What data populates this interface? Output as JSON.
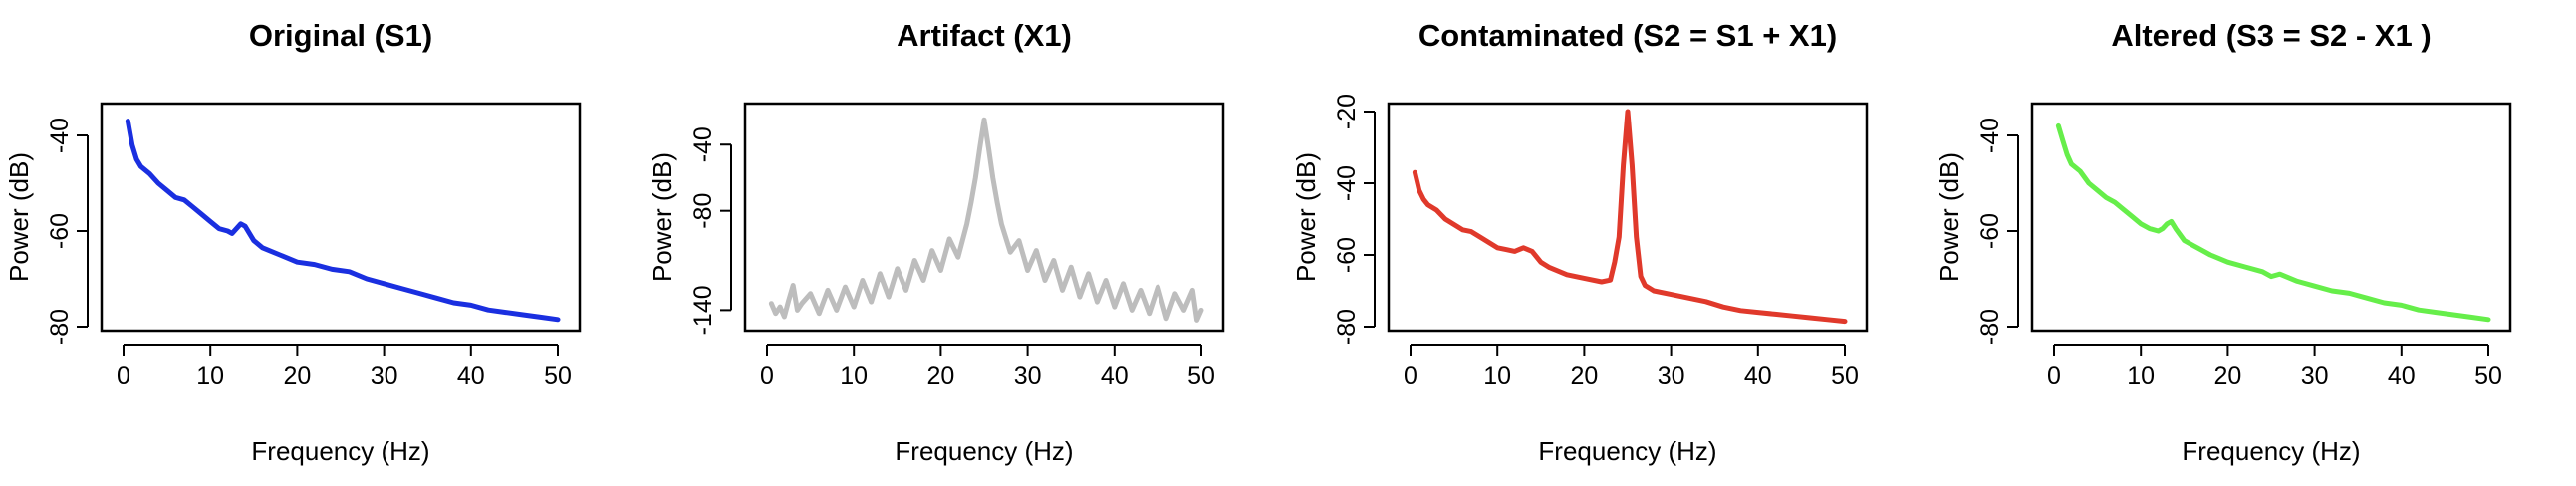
{
  "chart_data": [
    {
      "type": "line",
      "title": "Original (S1)",
      "xlabel": "Frequency (Hz)",
      "ylabel": "Power (dB)",
      "xlim": [
        0,
        50
      ],
      "ylim": [
        -80,
        -35
      ],
      "xticks": [
        0,
        10,
        20,
        30,
        40,
        50
      ],
      "yticks": [
        -80,
        -60,
        -40
      ],
      "color": "#1a2fe0",
      "series": [
        {
          "name": "S1",
          "x": [
            0.5,
            1,
            1.5,
            2,
            3,
            4,
            5,
            6,
            7,
            8,
            9,
            10,
            11,
            12,
            12.5,
            13,
            13.5,
            14,
            15,
            16,
            18,
            20,
            22,
            24,
            26,
            28,
            30,
            32,
            34,
            36,
            38,
            40,
            42,
            44,
            46,
            48,
            50
          ],
          "values": [
            -37,
            -42,
            -45,
            -46.5,
            -48,
            -50,
            -51.5,
            -53,
            -53.5,
            -55,
            -56.5,
            -58,
            -59.5,
            -60,
            -60.5,
            -59.5,
            -58.5,
            -59,
            -62,
            -63.5,
            -65,
            -66.5,
            -67,
            -68,
            -68.5,
            -70,
            -71,
            -72,
            -73,
            -74,
            -75,
            -75.5,
            -76.5,
            -77,
            -77.5,
            -78,
            -78.5
          ]
        }
      ]
    },
    {
      "type": "line",
      "title": "Artifact (X1)",
      "xlabel": "Frequency (Hz)",
      "ylabel": "Power (dB)",
      "xlim": [
        0,
        50
      ],
      "ylim": [
        -150,
        -20
      ],
      "xticks": [
        0,
        10,
        20,
        30,
        40,
        50
      ],
      "yticks": [
        -140,
        -80,
        -40
      ],
      "color": "#bdbdbd",
      "series": [
        {
          "name": "X1",
          "x": [
            0.5,
            1,
            1.5,
            2,
            2.5,
            3,
            3.5,
            4,
            5,
            6,
            7,
            8,
            9,
            10,
            11,
            12,
            13,
            14,
            15,
            16,
            17,
            18,
            19,
            20,
            21,
            22,
            23,
            23.5,
            24,
            24.5,
            25,
            25.5,
            26,
            26.5,
            27,
            28,
            29,
            30,
            31,
            32,
            33,
            34,
            35,
            36,
            37,
            38,
            39,
            40,
            41,
            42,
            43,
            44,
            45,
            46,
            47,
            48,
            49,
            49.5,
            50
          ],
          "values": [
            -136,
            -142,
            -138,
            -144,
            -134,
            -125,
            -140,
            -136,
            -130,
            -142,
            -128,
            -140,
            -126,
            -138,
            -122,
            -135,
            -118,
            -132,
            -115,
            -128,
            -110,
            -122,
            -104,
            -116,
            -97,
            -108,
            -88,
            -75,
            -60,
            -42,
            -25,
            -42,
            -60,
            -75,
            -88,
            -105,
            -98,
            -116,
            -104,
            -122,
            -110,
            -128,
            -114,
            -132,
            -118,
            -135,
            -122,
            -138,
            -124,
            -140,
            -128,
            -142,
            -126,
            -145,
            -130,
            -140,
            -128,
            -146,
            -140
          ]
        }
      ]
    },
    {
      "type": "line",
      "title": "Contaminated (S2 = S1 + X1)",
      "xlabel": "Frequency (Hz)",
      "ylabel": "Power (dB)",
      "xlim": [
        0,
        50
      ],
      "ylim": [
        -80,
        -20
      ],
      "xticks": [
        0,
        10,
        20,
        30,
        40,
        50
      ],
      "yticks": [
        -80,
        -60,
        -40,
        -20
      ],
      "color": "#e0392b",
      "series": [
        {
          "name": "S2",
          "x": [
            0.5,
            1,
            1.5,
            2,
            3,
            4,
            5,
            6,
            7,
            8,
            9,
            10,
            11,
            12,
            13,
            14,
            15,
            16,
            18,
            20,
            22,
            23,
            23.5,
            24,
            24.5,
            25,
            25.5,
            26,
            26.5,
            27,
            28,
            30,
            32,
            34,
            36,
            38,
            40,
            42,
            44,
            46,
            48,
            50
          ],
          "values": [
            -37,
            -42,
            -44.5,
            -46,
            -47.5,
            -50,
            -51.5,
            -53,
            -53.5,
            -55,
            -56.5,
            -58,
            -58.5,
            -59,
            -58,
            -59,
            -62,
            -63.5,
            -65.5,
            -66.5,
            -67.5,
            -67,
            -62,
            -55,
            -35,
            -20,
            -35,
            -55,
            -66,
            -68.5,
            -70,
            -71,
            -72,
            -73,
            -74.5,
            -75.5,
            -76,
            -76.5,
            -77,
            -77.5,
            -78,
            -78.5
          ]
        }
      ]
    },
    {
      "type": "line",
      "title": "Altered (S3 = S2 - X1 )",
      "xlabel": "Frequency (Hz)",
      "ylabel": "Power (dB)",
      "xlim": [
        0,
        50
      ],
      "ylim": [
        -80,
        -35
      ],
      "xticks": [
        0,
        10,
        20,
        30,
        40,
        50
      ],
      "yticks": [
        -80,
        -60,
        -40
      ],
      "color": "#66ee4a",
      "series": [
        {
          "name": "S3",
          "x": [
            0.5,
            1,
            1.5,
            2,
            3,
            4,
            5,
            6,
            7,
            8,
            9,
            10,
            11,
            12,
            12.5,
            13,
            13.5,
            14,
            15,
            16,
            18,
            20,
            22,
            24,
            25,
            26,
            28,
            30,
            32,
            34,
            36,
            38,
            40,
            42,
            44,
            46,
            48,
            50
          ],
          "values": [
            -38,
            -41,
            -44,
            -46,
            -47.5,
            -50,
            -51.5,
            -53,
            -54,
            -55.5,
            -57,
            -58.5,
            -59.5,
            -60,
            -59.5,
            -58.5,
            -58,
            -59.5,
            -62,
            -63,
            -65,
            -66.5,
            -67.5,
            -68.5,
            -69.5,
            -69,
            -70.5,
            -71.5,
            -72.5,
            -73,
            -74,
            -75,
            -75.5,
            -76.5,
            -77,
            -77.5,
            -78,
            -78.5
          ]
        }
      ]
    }
  ]
}
